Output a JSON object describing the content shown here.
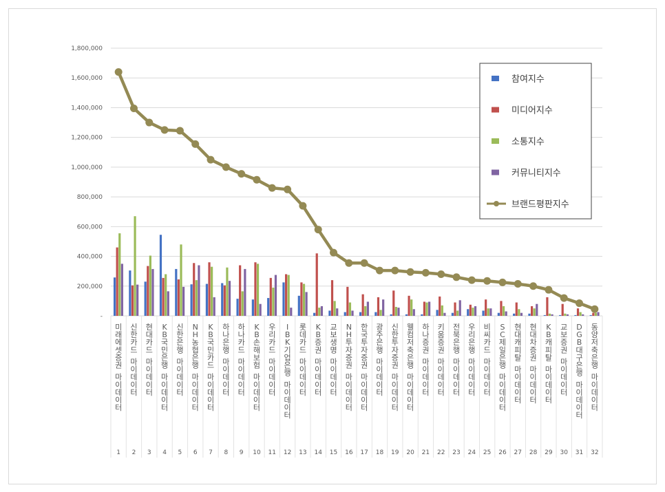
{
  "chart_data": {
    "type": "bar",
    "ylim": [
      0,
      1800000
    ],
    "grid": true,
    "legend_position": "top-right",
    "y_ticks": [
      "-",
      "200,000",
      "400,000",
      "600,000",
      "800,000",
      "1,000,000",
      "1,200,000",
      "1,400,000",
      "1,600,000",
      "1,800,000"
    ],
    "ranks": [
      "1",
      "2",
      "3",
      "4",
      "5",
      "6",
      "7",
      "8",
      "9",
      "10",
      "11",
      "12",
      "13",
      "14",
      "15",
      "16",
      "17",
      "18",
      "19",
      "20",
      "21",
      "22",
      "23",
      "24",
      "25",
      "26",
      "27",
      "28",
      "29",
      "30",
      "31",
      "32"
    ],
    "categories": [
      "미래에셋증권 마이데이터",
      "신한카드 마이데이터",
      "현대카드 마이데이터",
      "KB국민은행 마이데이터",
      "신한은행 마이데이터",
      "NH농협은행 마이데이터",
      "KB국민카드 마이데이터",
      "하나은행 마이데이터",
      "하나카드 마이데이터",
      "KB손해보험 마이데이터",
      "우리카드 마이데이터",
      "IBK기업은행 마이데이터",
      "롯데카드 마이데이터",
      "KB증권 마이데이터",
      "교보생명 마이데이터",
      "NH투자증권 마이데이터",
      "한국투자증권 마이데이터",
      "광주은행 마이데이터",
      "신한투자증권 마이데이터",
      "웰컴저축은행 마이데이터",
      "하나증권 마이데이터",
      "키움증권 마이데이터",
      "전북은행 마이데이터",
      "우리은행 마이데이터",
      "비씨카드 마이데이터",
      "SC제일은행 마이데이터",
      "현대캐피탈 마이데이터",
      "현대차증권 마이데이터",
      "KB캐피탈 마이데이터",
      "교보증권 마이데이터",
      "DGB대구은행 마이데이터",
      "동양저축은행 마이데이터"
    ],
    "series": [
      {
        "name": "참여지수",
        "color": "#4472c4",
        "values": [
          258000,
          305000,
          230000,
          545000,
          315000,
          212000,
          215000,
          220000,
          115000,
          110000,
          120000,
          225000,
          135000,
          20000,
          35000,
          25000,
          25000,
          25000,
          10000,
          10000,
          10000,
          40000,
          20000,
          45000,
          35000,
          20000,
          15000,
          15000,
          5000,
          5000,
          5000,
          5000
        ]
      },
      {
        "name": "미디어지수",
        "color": "#c0504d",
        "values": [
          460000,
          205000,
          335000,
          255000,
          245000,
          355000,
          360000,
          205000,
          340000,
          360000,
          255000,
          280000,
          225000,
          420000,
          240000,
          195000,
          145000,
          125000,
          170000,
          135000,
          95000,
          130000,
          90000,
          75000,
          110000,
          100000,
          90000,
          65000,
          125000,
          80000,
          50000,
          20000
        ]
      },
      {
        "name": "소통지수",
        "color": "#9bbb59",
        "values": [
          555000,
          670000,
          405000,
          280000,
          480000,
          240000,
          330000,
          325000,
          165000,
          350000,
          190000,
          275000,
          215000,
          55000,
          100000,
          90000,
          65000,
          40000,
          60000,
          110000,
          90000,
          70000,
          35000,
          55000,
          50000,
          65000,
          45000,
          50000,
          15000,
          15000,
          25000,
          20000
        ]
      },
      {
        "name": "커뮤니티지수",
        "color": "#8064a2",
        "values": [
          350000,
          210000,
          315000,
          165000,
          195000,
          340000,
          125000,
          235000,
          315000,
          80000,
          275000,
          55000,
          160000,
          65000,
          50000,
          35000,
          95000,
          110000,
          55000,
          45000,
          95000,
          20000,
          105000,
          65000,
          50000,
          30000,
          20000,
          80000,
          10000,
          10000,
          10000,
          25000
        ]
      }
    ],
    "line": {
      "name": "브랜드평판지수",
      "color": "#948a54",
      "values": [
        1640000,
        1395000,
        1300000,
        1250000,
        1245000,
        1155000,
        1050000,
        1000000,
        955000,
        915000,
        860000,
        850000,
        740000,
        580000,
        425000,
        355000,
        355000,
        305000,
        305000,
        295000,
        290000,
        280000,
        260000,
        240000,
        235000,
        225000,
        215000,
        200000,
        175000,
        120000,
        85000,
        45000
      ]
    }
  }
}
